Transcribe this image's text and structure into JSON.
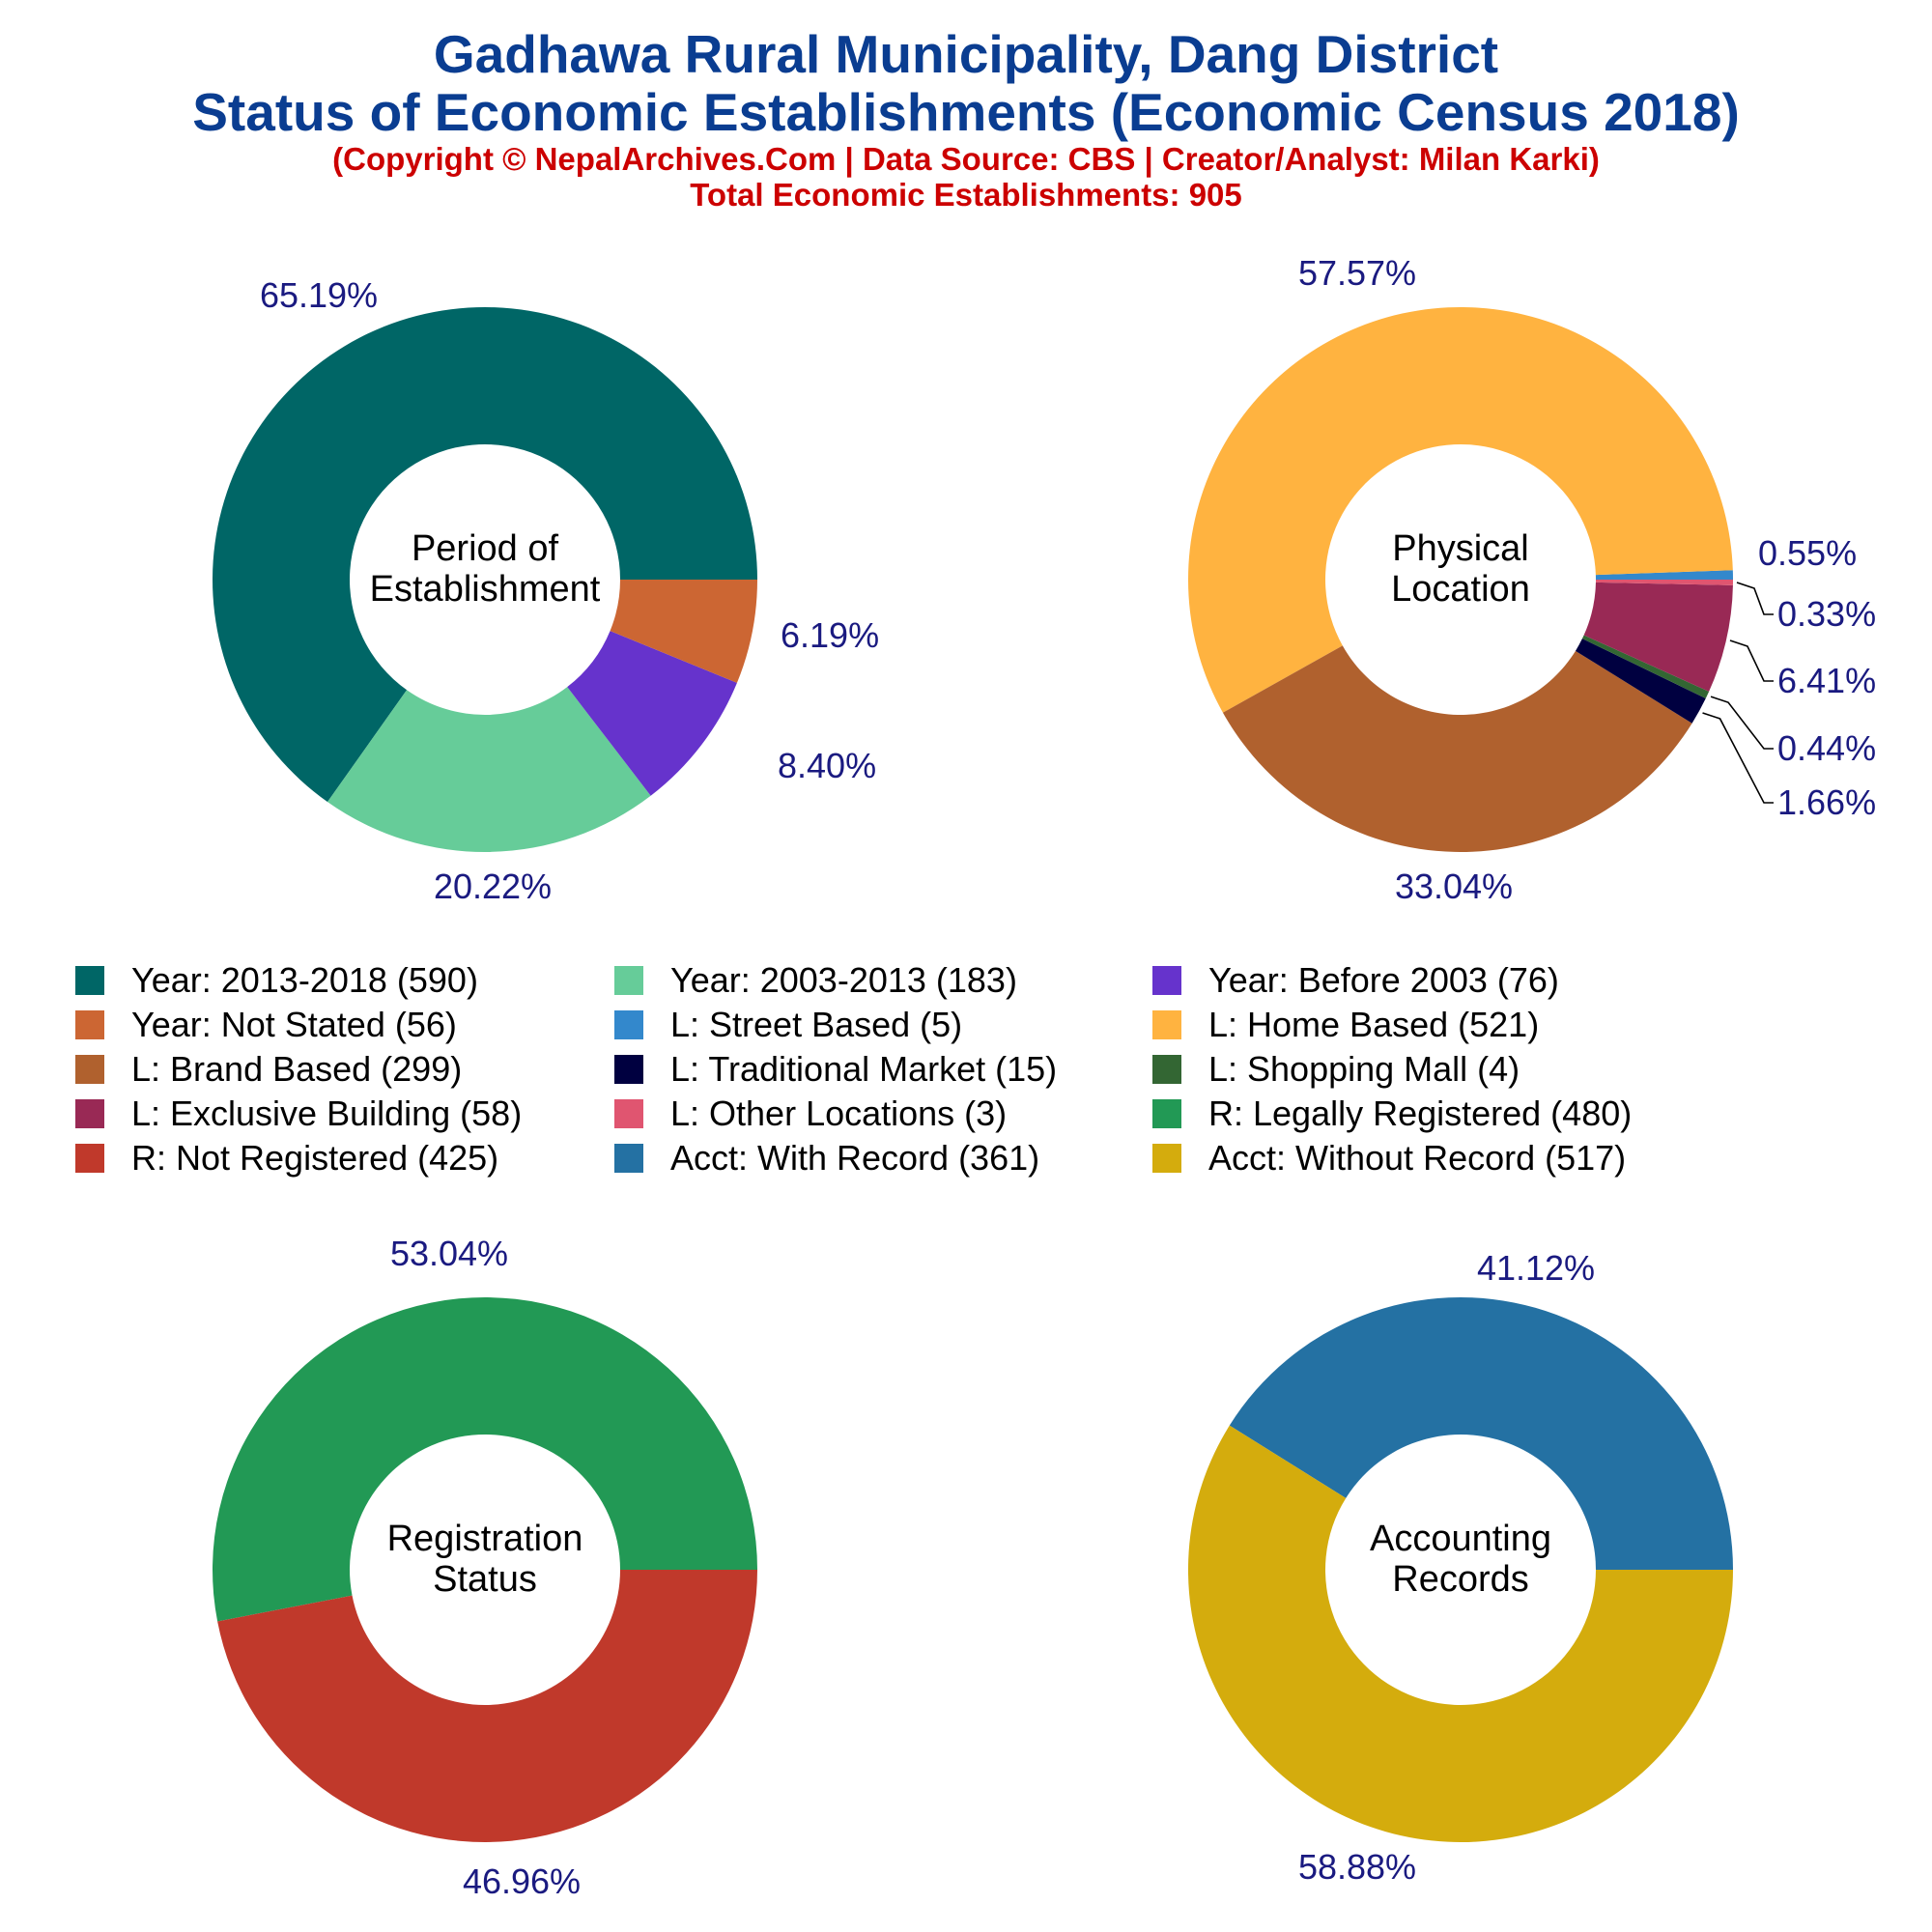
{
  "title": "Gadhawa Rural Municipality, Dang District",
  "subtitle": "Status of Economic Establishments (Economic Census 2018)",
  "copyright": "(Copyright © NepalArchives.Com | Data Source: CBS | Creator/Analyst: Milan Karki)",
  "total": "Total Economic Establishments: 905",
  "legend": [
    {
      "label": "Year: 2013-2018 (590)",
      "color": "#006666"
    },
    {
      "label": "Year: 2003-2013 (183)",
      "color": "#66cc99"
    },
    {
      "label": "Year: Before 2003 (76)",
      "color": "#6633cc"
    },
    {
      "label": "Year: Not Stated (56)",
      "color": "#cc6633"
    },
    {
      "label": "L: Street Based (5)",
      "color": "#3388cc"
    },
    {
      "label": "L: Home Based (521)",
      "color": "#ffb340"
    },
    {
      "label": "L: Brand Based (299)",
      "color": "#b0612e"
    },
    {
      "label": "L: Traditional Market (15)",
      "color": "#000040"
    },
    {
      "label": "L: Shopping Mall (4)",
      "color": "#336633"
    },
    {
      "label": "L: Exclusive Building (58)",
      "color": "#992955"
    },
    {
      "label": "L: Other Locations (3)",
      "color": "#e05570"
    },
    {
      "label": "R: Legally Registered (480)",
      "color": "#229955"
    },
    {
      "label": "R: Not Registered (425)",
      "color": "#c0392b"
    },
    {
      "label": "Acct: With Record (361)",
      "color": "#2471a3"
    },
    {
      "label": "Acct: Without Record (517)",
      "color": "#d4ac0d"
    }
  ],
  "chart_data": [
    {
      "type": "pie",
      "center_label": [
        "Period of",
        "Establishment"
      ],
      "labels": [
        "Year: 2013-2018",
        "Year: 2003-2013",
        "Year: Before 2003",
        "Year: Not Stated"
      ],
      "values": [
        590,
        183,
        76,
        56
      ],
      "percent_labels": [
        "65.19%",
        "20.22%",
        "8.40%",
        "6.19%"
      ],
      "colors": [
        "#006666",
        "#66cc99",
        "#6633cc",
        "#cc6633"
      ]
    },
    {
      "type": "pie",
      "center_label": [
        "Physical",
        "Location"
      ],
      "labels": [
        "L: Street Based",
        "L: Home Based",
        "L: Brand Based",
        "L: Traditional Market",
        "L: Shopping Mall",
        "L: Exclusive Building",
        "L: Other Locations"
      ],
      "values": [
        5,
        521,
        299,
        15,
        4,
        58,
        3
      ],
      "percent_labels": [
        "0.55%",
        "57.57%",
        "33.04%",
        "1.66%",
        "0.44%",
        "6.41%",
        "0.33%"
      ],
      "colors": [
        "#3388cc",
        "#ffb340",
        "#b0612e",
        "#000040",
        "#336633",
        "#992955",
        "#e05570"
      ]
    },
    {
      "type": "pie",
      "center_label": [
        "Registration",
        "Status"
      ],
      "labels": [
        "R: Legally Registered",
        "R: Not Registered"
      ],
      "values": [
        480,
        425
      ],
      "percent_labels": [
        "53.04%",
        "46.96%"
      ],
      "colors": [
        "#229955",
        "#c0392b"
      ]
    },
    {
      "type": "pie",
      "center_label": [
        "Accounting",
        "Records"
      ],
      "labels": [
        "Acct: With Record",
        "Acct: Without Record"
      ],
      "values": [
        361,
        517
      ],
      "percent_labels": [
        "41.12%",
        "58.88%"
      ],
      "colors": [
        "#2471a3",
        "#d4ac0d"
      ]
    }
  ]
}
